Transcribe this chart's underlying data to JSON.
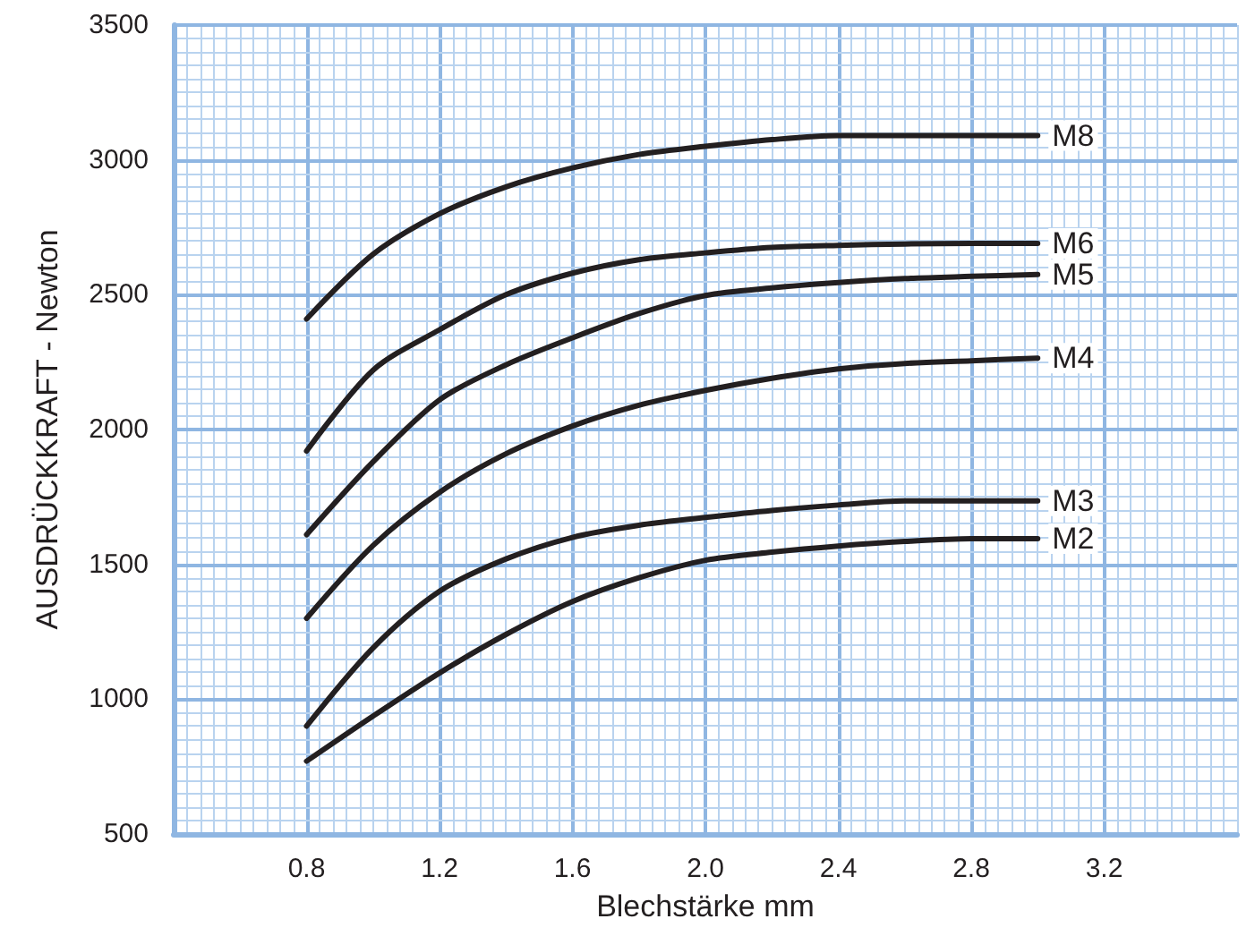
{
  "chart_data": {
    "type": "line",
    "xlabel": "Blechstärke mm",
    "ylabel": "AUSDRÜCKKRAFT - Newton",
    "xlim": [
      0.4,
      3.6
    ],
    "xticks": [
      {
        "value": 0.4,
        "label": null
      },
      {
        "value": 0.44,
        "label": null
      },
      {
        "value": 0.48,
        "label": null
      },
      {
        "value": 0.52,
        "label": null
      },
      {
        "value": 0.56,
        "label": null
      },
      {
        "value": 0.6,
        "label": null
      },
      {
        "value": 0.64,
        "label": null
      },
      {
        "value": 0.68,
        "label": null
      },
      {
        "value": 0.72,
        "label": null
      },
      {
        "value": 0.76,
        "label": null
      },
      0.8,
      {
        "value": 0.84,
        "label": null
      },
      {
        "value": 0.88,
        "label": null
      },
      {
        "value": 0.92,
        "label": null
      },
      {
        "value": 0.96,
        "label": null
      },
      {
        "value": 1.0,
        "label": null
      },
      {
        "value": 1.04,
        "label": null
      },
      {
        "value": 1.08,
        "label": null
      },
      {
        "value": 1.12,
        "label": null
      },
      {
        "value": 1.16,
        "label": null
      },
      1.2,
      {
        "value": 1.24,
        "label": null
      },
      {
        "value": 1.28,
        "label": null
      },
      {
        "value": 1.32,
        "label": null
      },
      {
        "value": 1.36,
        "label": null
      },
      {
        "value": 1.4,
        "label": null
      },
      {
        "value": 1.44,
        "label": null
      },
      {
        "value": 1.48,
        "label": null
      },
      {
        "value": 1.52,
        "label": null
      },
      {
        "value": 1.56,
        "label": null
      },
      1.6,
      {
        "value": 1.64,
        "label": null
      },
      {
        "value": 1.68,
        "label": null
      },
      {
        "value": 1.72,
        "label": null
      },
      {
        "value": 1.76,
        "label": null
      },
      {
        "value": 1.8,
        "label": null
      },
      {
        "value": 1.84,
        "label": null
      },
      {
        "value": 1.88,
        "label": null
      },
      {
        "value": 1.92,
        "label": null
      },
      {
        "value": 1.96,
        "label": null
      },
      {
        "value": 2.0,
        "label": "2.0"
      },
      {
        "value": 2.04,
        "label": null
      },
      {
        "value": 2.08,
        "label": null
      },
      {
        "value": 2.12,
        "label": null
      },
      {
        "value": 2.16,
        "label": null
      },
      {
        "value": 2.2,
        "label": null
      },
      {
        "value": 2.24,
        "label": null
      },
      {
        "value": 2.28,
        "label": null
      },
      {
        "value": 2.32,
        "label": null
      },
      {
        "value": 2.36,
        "label": null
      },
      2.4,
      {
        "value": 2.44,
        "label": null
      },
      {
        "value": 2.48,
        "label": null
      },
      {
        "value": 2.52,
        "label": null
      },
      {
        "value": 2.56,
        "label": null
      },
      {
        "value": 2.6,
        "label": null
      },
      {
        "value": 2.64,
        "label": null
      },
      {
        "value": 2.68,
        "label": null
      },
      {
        "value": 2.72,
        "label": null
      },
      {
        "value": 2.76,
        "label": null
      },
      2.8,
      {
        "value": 2.84,
        "label": null
      },
      {
        "value": 2.88,
        "label": null
      },
      {
        "value": 2.92,
        "label": null
      },
      {
        "value": 2.96,
        "label": null
      },
      {
        "value": 3.0,
        "label": null
      },
      {
        "value": 3.04,
        "label": null
      },
      {
        "value": 3.08,
        "label": null
      },
      {
        "value": 3.12,
        "label": null
      },
      {
        "value": 3.16,
        "label": null
      },
      3.2,
      {
        "value": 3.24,
        "label": null
      },
      {
        "value": 3.28,
        "label": null
      },
      {
        "value": 3.32,
        "label": null
      },
      {
        "value": 3.36,
        "label": null
      },
      {
        "value": 3.4,
        "label": null
      },
      {
        "value": 3.44,
        "label": null
      },
      {
        "value": 3.48,
        "label": null
      },
      {
        "value": 3.52,
        "label": null
      },
      {
        "value": 3.56,
        "label": null
      },
      {
        "value": 3.6,
        "label": null
      }
    ],
    "ylim": [
      500,
      3500
    ],
    "yticks": [
      500,
      {
        "value": 550,
        "label": null
      },
      {
        "value": 600,
        "label": null
      },
      {
        "value": 650,
        "label": null
      },
      {
        "value": 700,
        "label": null
      },
      {
        "value": 750,
        "label": null
      },
      {
        "value": 800,
        "label": null
      },
      {
        "value": 850,
        "label": null
      },
      {
        "value": 900,
        "label": null
      },
      {
        "value": 950,
        "label": null
      },
      1000,
      {
        "value": 1050,
        "label": null
      },
      {
        "value": 1100,
        "label": null
      },
      {
        "value": 1150,
        "label": null
      },
      {
        "value": 1200,
        "label": null
      },
      {
        "value": 1250,
        "label": null
      },
      {
        "value": 1300,
        "label": null
      },
      {
        "value": 1350,
        "label": null
      },
      {
        "value": 1400,
        "label": null
      },
      {
        "value": 1450,
        "label": null
      },
      1500,
      {
        "value": 1550,
        "label": null
      },
      {
        "value": 1600,
        "label": null
      },
      {
        "value": 1650,
        "label": null
      },
      {
        "value": 1700,
        "label": null
      },
      {
        "value": 1750,
        "label": null
      },
      {
        "value": 1800,
        "label": null
      },
      {
        "value": 1850,
        "label": null
      },
      {
        "value": 1900,
        "label": null
      },
      {
        "value": 1950,
        "label": null
      },
      2000,
      {
        "value": 2050,
        "label": null
      },
      {
        "value": 2100,
        "label": null
      },
      {
        "value": 2150,
        "label": null
      },
      {
        "value": 2200,
        "label": null
      },
      {
        "value": 2250,
        "label": null
      },
      {
        "value": 2300,
        "label": null
      },
      {
        "value": 2350,
        "label": null
      },
      {
        "value": 2400,
        "label": null
      },
      {
        "value": 2450,
        "label": null
      },
      2500,
      {
        "value": 2550,
        "label": null
      },
      {
        "value": 2600,
        "label": null
      },
      {
        "value": 2650,
        "label": null
      },
      {
        "value": 2700,
        "label": null
      },
      {
        "value": 2750,
        "label": null
      },
      {
        "value": 2800,
        "label": null
      },
      {
        "value": 2850,
        "label": null
      },
      {
        "value": 2900,
        "label": null
      },
      {
        "value": 2950,
        "label": null
      },
      3000,
      {
        "value": 3050,
        "label": null
      },
      {
        "value": 3100,
        "label": null
      },
      {
        "value": 3150,
        "label": null
      },
      {
        "value": 3200,
        "label": null
      },
      {
        "value": 3250,
        "label": null
      },
      {
        "value": 3300,
        "label": null
      },
      {
        "value": 3350,
        "label": null
      },
      {
        "value": 3400,
        "label": null
      },
      {
        "value": 3450,
        "label": null
      },
      3500
    ],
    "grid": true,
    "legend": false,
    "marker": "none",
    "line_style": "solid",
    "x": [
      0.8,
      1.0,
      1.2,
      1.4,
      1.6,
      1.8,
      2.0,
      2.2,
      2.4,
      2.6,
      2.8,
      3.0
    ],
    "series": [
      {
        "name": "M8",
        "color": "#231f20",
        "values": [
          2410,
          2650,
          2800,
          2900,
          2970,
          3020,
          3050,
          3075,
          3090,
          3090,
          3090,
          3090
        ]
      },
      {
        "name": "M6",
        "color": "#231f20",
        "values": [
          1920,
          2220,
          2370,
          2500,
          2580,
          2630,
          2655,
          2675,
          2683,
          2688,
          2690,
          2690
        ]
      },
      {
        "name": "M5",
        "color": "#231f20",
        "values": [
          1610,
          1880,
          2110,
          2240,
          2340,
          2430,
          2497,
          2525,
          2545,
          2560,
          2568,
          2575
        ]
      },
      {
        "name": "M4",
        "color": "#231f20",
        "values": [
          1300,
          1570,
          1767,
          1910,
          2013,
          2090,
          2145,
          2190,
          2225,
          2245,
          2255,
          2265
        ]
      },
      {
        "name": "M3",
        "color": "#231f20",
        "values": [
          900,
          1190,
          1400,
          1520,
          1600,
          1645,
          1674,
          1700,
          1720,
          1735,
          1735,
          1735
        ]
      },
      {
        "name": "M2",
        "color": "#231f20",
        "values": [
          770,
          937,
          1097,
          1240,
          1362,
          1450,
          1515,
          1545,
          1568,
          1585,
          1595,
          1595
        ]
      }
    ]
  }
}
